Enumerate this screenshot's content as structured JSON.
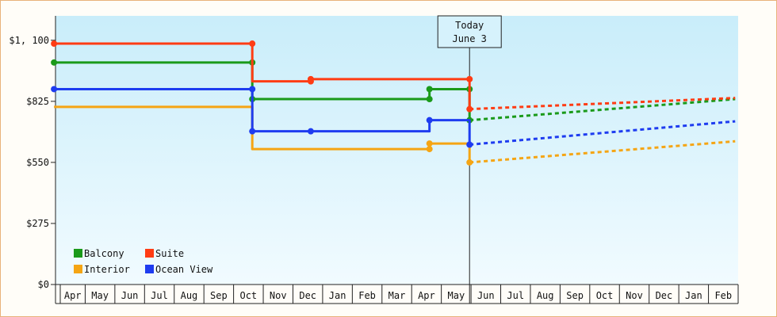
{
  "chart_data": {
    "type": "line",
    "step": true,
    "title": "",
    "xlabel": "",
    "ylabel": "",
    "ylim": [
      0,
      1210
    ],
    "yticks": [
      {
        "value": 0,
        "label": "$0"
      },
      {
        "value": 275,
        "label": "$275"
      },
      {
        "value": 550,
        "label": "$550"
      },
      {
        "value": 825,
        "label": "$825"
      },
      {
        "value": 1100,
        "label": "$1, 100"
      }
    ],
    "xticks": [
      "Apr",
      "May",
      "Jun",
      "Jul",
      "Aug",
      "Sep",
      "Oct",
      "Nov",
      "Dec",
      "Jan",
      "Feb",
      "Mar",
      "Apr",
      "May",
      "Jun",
      "Jul",
      "Aug",
      "Sep",
      "Oct",
      "Nov",
      "Dec",
      "Jan",
      "Feb"
    ],
    "xlim": [
      0,
      22.9
    ],
    "today": {
      "x": 13.95,
      "label_line1": "Today",
      "label_line2": "June 3"
    },
    "legend": {
      "placement": "bottom-left",
      "entries": [
        {
          "name": "Balcony",
          "color": "#1a9a1a"
        },
        {
          "name": "Suite",
          "color": "#ff3c14"
        },
        {
          "name": "Interior",
          "color": "#f5a514"
        },
        {
          "name": "Ocean View",
          "color": "#1e3cf0"
        }
      ]
    },
    "series": [
      {
        "name": "Balcony",
        "color": "#1a9a1a",
        "history": [
          [
            -0.05,
            1000
          ],
          [
            6.63,
            1000
          ],
          [
            6.63,
            835
          ],
          [
            12.6,
            835
          ],
          [
            12.6,
            880
          ],
          [
            13.95,
            880
          ],
          [
            13.95,
            740
          ]
        ],
        "markers": [
          [
            -0.05,
            1000
          ],
          [
            6.63,
            1000
          ],
          [
            6.63,
            835
          ],
          [
            12.6,
            835
          ],
          [
            12.6,
            880
          ],
          [
            13.95,
            880
          ],
          [
            13.95,
            740
          ]
        ],
        "forecast": [
          [
            13.95,
            740
          ],
          [
            22.9,
            835
          ]
        ]
      },
      {
        "name": "Suite",
        "color": "#ff3c14",
        "history": [
          [
            -0.05,
            1085
          ],
          [
            6.63,
            1085
          ],
          [
            6.63,
            915
          ],
          [
            8.6,
            915
          ],
          [
            8.6,
            925
          ],
          [
            13.95,
            925
          ],
          [
            13.95,
            790
          ]
        ],
        "markers": [
          [
            -0.05,
            1085
          ],
          [
            6.63,
            1085
          ],
          [
            8.6,
            915
          ],
          [
            8.6,
            925
          ],
          [
            13.95,
            925
          ],
          [
            13.95,
            790
          ]
        ],
        "forecast": [
          [
            13.95,
            790
          ],
          [
            22.9,
            840
          ]
        ]
      },
      {
        "name": "Interior",
        "color": "#f5a514",
        "history": [
          [
            -0.05,
            800
          ],
          [
            6.63,
            800
          ],
          [
            6.63,
            610
          ],
          [
            12.6,
            610
          ],
          [
            12.6,
            635
          ],
          [
            13.95,
            635
          ],
          [
            13.95,
            550
          ]
        ],
        "markers": [
          [
            12.6,
            610
          ],
          [
            12.6,
            635
          ],
          [
            13.95,
            550
          ]
        ],
        "forecast": [
          [
            13.95,
            550
          ],
          [
            22.9,
            645
          ]
        ]
      },
      {
        "name": "Ocean View",
        "color": "#1e3cf0",
        "history": [
          [
            -0.05,
            880
          ],
          [
            6.63,
            880
          ],
          [
            6.63,
            690
          ],
          [
            8.6,
            690
          ],
          [
            8.6,
            690
          ],
          [
            12.6,
            690
          ],
          [
            12.6,
            740
          ],
          [
            13.95,
            740
          ],
          [
            13.95,
            630
          ]
        ],
        "markers": [
          [
            -0.05,
            880
          ],
          [
            6.63,
            880
          ],
          [
            6.63,
            690
          ],
          [
            8.6,
            690
          ],
          [
            12.6,
            740
          ],
          [
            13.95,
            630
          ]
        ],
        "forecast": [
          [
            13.95,
            630
          ],
          [
            22.9,
            735
          ]
        ]
      }
    ]
  }
}
